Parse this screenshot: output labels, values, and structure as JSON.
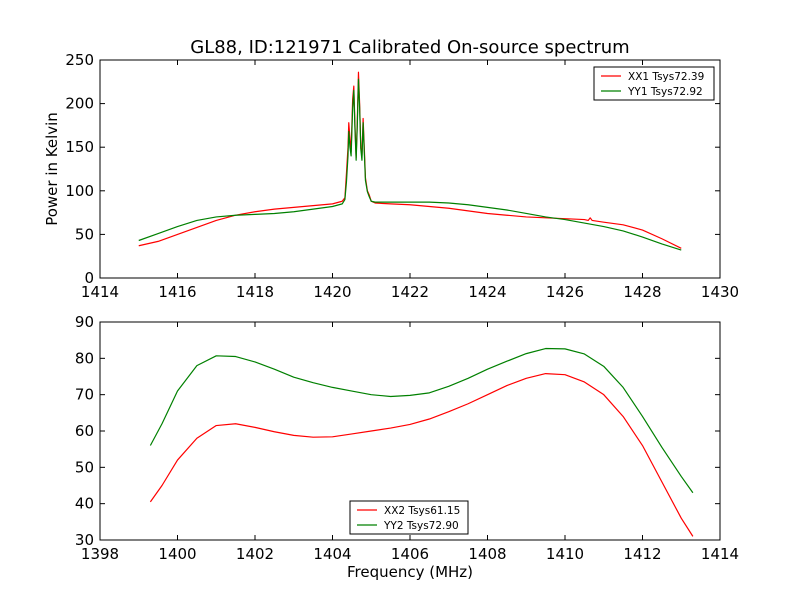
{
  "chart_data": [
    {
      "type": "line",
      "title": "GL88, ID:121971 Calibrated On-source spectrum",
      "xlabel": "",
      "ylabel": "Power in Kelvin",
      "xlim": [
        1414,
        1430
      ],
      "ylim": [
        0,
        250
      ],
      "xticks": [
        1414,
        1416,
        1418,
        1420,
        1422,
        1424,
        1426,
        1428,
        1430
      ],
      "yticks": [
        0,
        50,
        100,
        150,
        200,
        250
      ],
      "legend_position": "top-right",
      "series": [
        {
          "name": "XX1 Tsys72.39",
          "color": "#ff0000",
          "points": [
            [
              1415.0,
              37
            ],
            [
              1415.5,
              42
            ],
            [
              1416.0,
              50
            ],
            [
              1416.5,
              58
            ],
            [
              1417.0,
              66
            ],
            [
              1417.5,
              72
            ],
            [
              1418.0,
              76
            ],
            [
              1418.5,
              79
            ],
            [
              1419.0,
              81
            ],
            [
              1419.5,
              83
            ],
            [
              1420.0,
              85
            ],
            [
              1420.25,
              88
            ],
            [
              1420.32,
              92
            ],
            [
              1420.36,
              120
            ],
            [
              1420.4,
              150
            ],
            [
              1420.42,
              178
            ],
            [
              1420.45,
              160
            ],
            [
              1420.48,
              145
            ],
            [
              1420.52,
              205
            ],
            [
              1420.55,
              220
            ],
            [
              1420.58,
              175
            ],
            [
              1420.61,
              138
            ],
            [
              1420.64,
              180
            ],
            [
              1420.67,
              236
            ],
            [
              1420.7,
              200
            ],
            [
              1420.73,
              150
            ],
            [
              1420.76,
              140
            ],
            [
              1420.79,
              183
            ],
            [
              1420.82,
              150
            ],
            [
              1420.85,
              115
            ],
            [
              1420.9,
              100
            ],
            [
              1420.95,
              95
            ],
            [
              1421.0,
              88
            ],
            [
              1421.1,
              86
            ],
            [
              1421.5,
              85
            ],
            [
              1422.0,
              84
            ],
            [
              1422.5,
              82
            ],
            [
              1423.0,
              80
            ],
            [
              1423.5,
              77
            ],
            [
              1424.0,
              74
            ],
            [
              1424.5,
              72
            ],
            [
              1425.0,
              70
            ],
            [
              1425.5,
              69
            ],
            [
              1426.0,
              68
            ],
            [
              1426.5,
              67
            ],
            [
              1426.6,
              66
            ],
            [
              1426.65,
              69
            ],
            [
              1426.7,
              66
            ],
            [
              1427.0,
              64
            ],
            [
              1427.5,
              61
            ],
            [
              1428.0,
              55
            ],
            [
              1428.5,
              45
            ],
            [
              1429.0,
              34
            ]
          ]
        },
        {
          "name": "YY1 Tsys72.92",
          "color": "#008000",
          "points": [
            [
              1415.0,
              43
            ],
            [
              1415.5,
              51
            ],
            [
              1416.0,
              59
            ],
            [
              1416.5,
              66
            ],
            [
              1417.0,
              70
            ],
            [
              1417.5,
              72
            ],
            [
              1418.0,
              73
            ],
            [
              1418.5,
              74
            ],
            [
              1419.0,
              76
            ],
            [
              1419.5,
              79
            ],
            [
              1420.0,
              82
            ],
            [
              1420.25,
              85
            ],
            [
              1420.32,
              90
            ],
            [
              1420.36,
              110
            ],
            [
              1420.4,
              140
            ],
            [
              1420.42,
              168
            ],
            [
              1420.45,
              150
            ],
            [
              1420.48,
              140
            ],
            [
              1420.52,
              195
            ],
            [
              1420.55,
              215
            ],
            [
              1420.58,
              170
            ],
            [
              1420.61,
              135
            ],
            [
              1420.64,
              175
            ],
            [
              1420.67,
              228
            ],
            [
              1420.7,
              195
            ],
            [
              1420.73,
              148
            ],
            [
              1420.76,
              135
            ],
            [
              1420.79,
              178
            ],
            [
              1420.82,
              145
            ],
            [
              1420.85,
              112
            ],
            [
              1420.9,
              99
            ],
            [
              1420.95,
              93
            ],
            [
              1421.0,
              88
            ],
            [
              1421.1,
              87
            ],
            [
              1421.5,
              87
            ],
            [
              1422.0,
              87
            ],
            [
              1422.5,
              87
            ],
            [
              1423.0,
              86
            ],
            [
              1423.5,
              84
            ],
            [
              1424.0,
              81
            ],
            [
              1424.5,
              78
            ],
            [
              1425.0,
              74
            ],
            [
              1425.5,
              70
            ],
            [
              1426.0,
              67
            ],
            [
              1426.5,
              63
            ],
            [
              1427.0,
              59
            ],
            [
              1427.5,
              54
            ],
            [
              1428.0,
              47
            ],
            [
              1428.5,
              39
            ],
            [
              1429.0,
              32
            ]
          ]
        }
      ]
    },
    {
      "type": "line",
      "title": "",
      "xlabel": "Frequency (MHz)",
      "ylabel": "",
      "xlim": [
        1398,
        1414
      ],
      "ylim": [
        30,
        90
      ],
      "xticks": [
        1398,
        1400,
        1402,
        1404,
        1406,
        1408,
        1410,
        1412,
        1414
      ],
      "yticks": [
        30,
        40,
        50,
        60,
        70,
        80,
        90
      ],
      "legend_position": "bottom-center",
      "series": [
        {
          "name": "XX2 Tsys61.15",
          "color": "#ff0000",
          "points": [
            [
              1399.3,
              40.5
            ],
            [
              1399.6,
              45
            ],
            [
              1400.0,
              52
            ],
            [
              1400.5,
              58
            ],
            [
              1401.0,
              61.5
            ],
            [
              1401.5,
              62
            ],
            [
              1402.0,
              61
            ],
            [
              1402.5,
              59.8
            ],
            [
              1403.0,
              58.8
            ],
            [
              1403.5,
              58.3
            ],
            [
              1404.0,
              58.4
            ],
            [
              1404.5,
              59.2
            ],
            [
              1405.0,
              60
            ],
            [
              1405.5,
              60.8
            ],
            [
              1406.0,
              61.8
            ],
            [
              1406.5,
              63.3
            ],
            [
              1407.0,
              65.3
            ],
            [
              1407.5,
              67.5
            ],
            [
              1408.0,
              70
            ],
            [
              1408.5,
              72.5
            ],
            [
              1409.0,
              74.5
            ],
            [
              1409.5,
              75.8
            ],
            [
              1410.0,
              75.5
            ],
            [
              1410.5,
              73.5
            ],
            [
              1411.0,
              70
            ],
            [
              1411.5,
              64
            ],
            [
              1412.0,
              56
            ],
            [
              1412.5,
              46
            ],
            [
              1413.0,
              36
            ],
            [
              1413.3,
              31
            ]
          ]
        },
        {
          "name": "YY2 Tsys72.90",
          "color": "#008000",
          "points": [
            [
              1399.3,
              56
            ],
            [
              1399.6,
              62
            ],
            [
              1400.0,
              71
            ],
            [
              1400.5,
              78
            ],
            [
              1401.0,
              80.7
            ],
            [
              1401.5,
              80.5
            ],
            [
              1402.0,
              79
            ],
            [
              1402.5,
              77
            ],
            [
              1403.0,
              74.8
            ],
            [
              1403.5,
              73.3
            ],
            [
              1404.0,
              72
            ],
            [
              1404.5,
              71
            ],
            [
              1405.0,
              70
            ],
            [
              1405.5,
              69.5
            ],
            [
              1406.0,
              69.8
            ],
            [
              1406.5,
              70.5
            ],
            [
              1407.0,
              72.3
            ],
            [
              1407.5,
              74.5
            ],
            [
              1408.0,
              77
            ],
            [
              1408.5,
              79.2
            ],
            [
              1409.0,
              81.3
            ],
            [
              1409.5,
              82.7
            ],
            [
              1410.0,
              82.6
            ],
            [
              1410.5,
              81.2
            ],
            [
              1411.0,
              77.8
            ],
            [
              1411.5,
              72
            ],
            [
              1412.0,
              64
            ],
            [
              1412.5,
              55.5
            ],
            [
              1413.0,
              47.5
            ],
            [
              1413.3,
              43
            ]
          ]
        }
      ]
    }
  ]
}
